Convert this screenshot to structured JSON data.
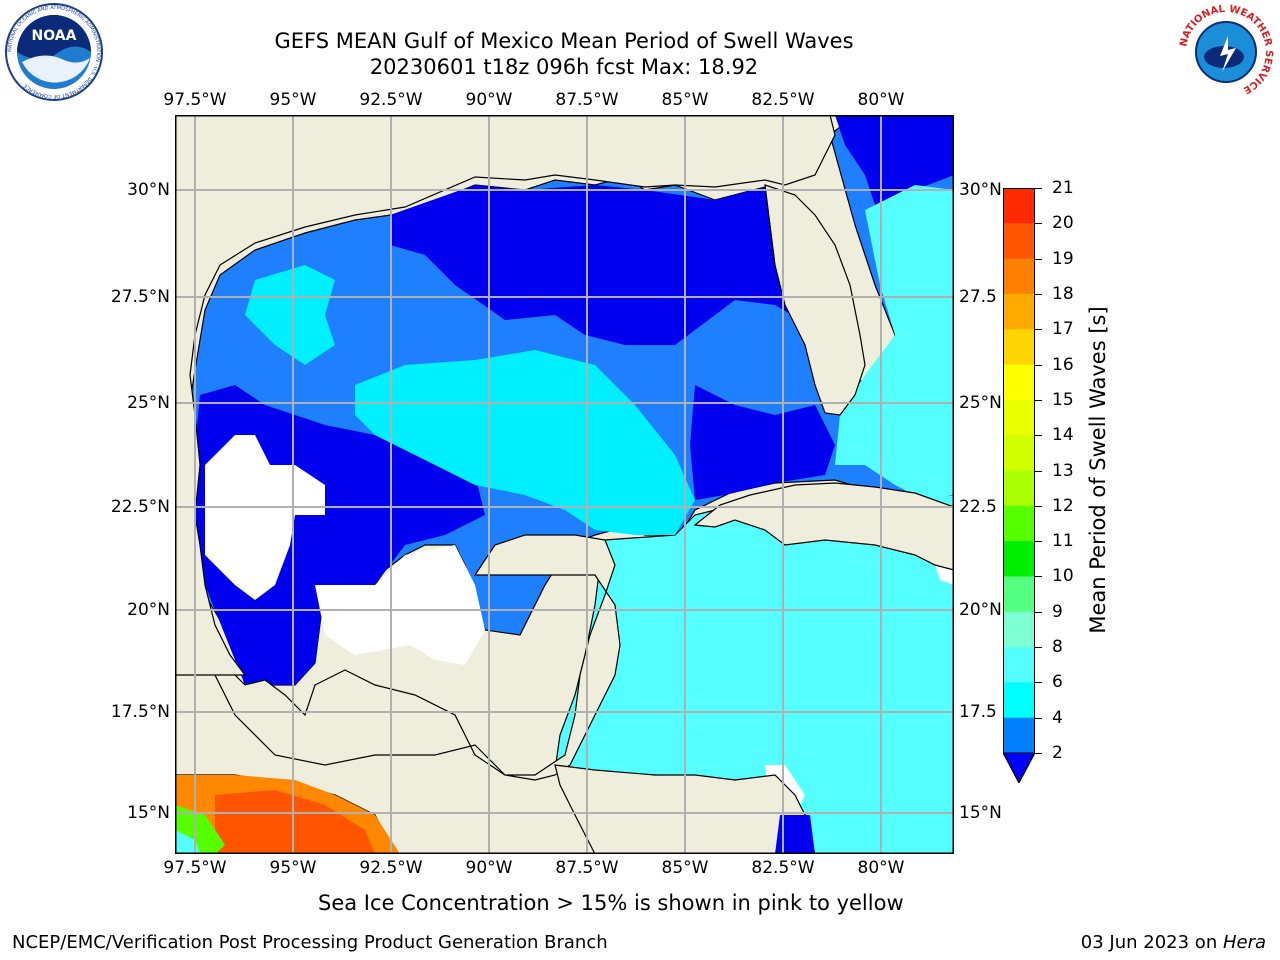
{
  "title": {
    "line1": "GEFS MEAN Gulf of Mexico Mean Period of Swell Waves",
    "line2": "20230601 t18z 096h fcst   Max: 18.92"
  },
  "logos": {
    "left": "NOAA",
    "left_ring_text": "NATIONAL OCEANIC AND ATMOSPHERIC ADMINISTRATION · U.S. DEPARTMENT OF COMMERCE",
    "right_ring_text": "NATIONAL WEATHER SERVICE"
  },
  "map": {
    "lon_labels": [
      "97.5°W",
      "95°W",
      "92.5°W",
      "90°W",
      "87.5°W",
      "85°W",
      "82.5°W",
      "80°W"
    ],
    "lat_labels_left": [
      "30°N",
      "27.5°N",
      "25°N",
      "22.5°N",
      "20°N",
      "17.5°N",
      "15°N"
    ],
    "lat_labels_right": [
      "30°N",
      "27.5",
      "25°N",
      "22.5",
      "20°N",
      "17.5",
      "15°N"
    ],
    "land_color": "#efeedc",
    "grid_color": "#b0b0b0"
  },
  "colorbar": {
    "label": "Mean Period of Swell Waves [s]",
    "ticks": [
      "21",
      "20",
      "19",
      "18",
      "17",
      "16",
      "15",
      "14",
      "13",
      "12",
      "11",
      "10",
      "9",
      "8",
      "6",
      "4",
      "2"
    ],
    "colors": [
      "#ff0000",
      "#ff2a00",
      "#ff5500",
      "#ff8000",
      "#ffaa00",
      "#ffd400",
      "#ffff00",
      "#eaff00",
      "#d4ff00",
      "#aaff00",
      "#55ff00",
      "#00ee00",
      "#55ff7f",
      "#7fffd4",
      "#55ffff",
      "#00ffff",
      "#0080ff",
      "#0000ff"
    ]
  },
  "caption": "Sea Ice Concentration > 15% is shown in pink to yellow",
  "footer": {
    "left": "NCEP/EMC/Verification Post Processing Product Generation Branch",
    "right_date": "03 Jun 2023 on ",
    "right_host": "Hera"
  }
}
